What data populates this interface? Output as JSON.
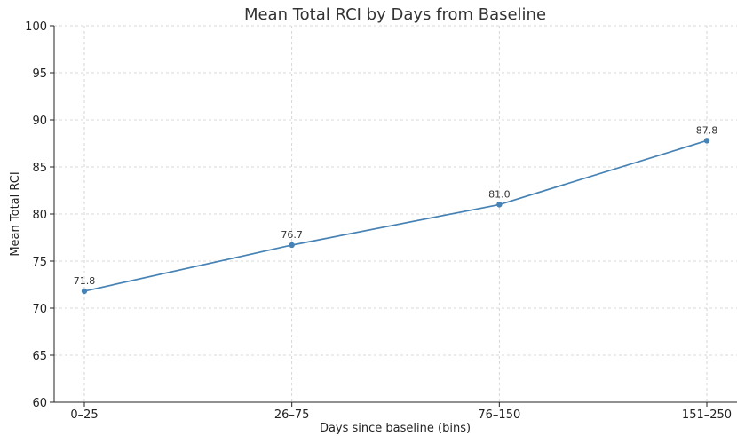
{
  "chart_data": {
    "type": "line",
    "title": "Mean Total RCI by Days from Baseline",
    "xlabel": "Days since baseline (bins)",
    "ylabel": "Mean Total RCI",
    "categories": [
      "0–25",
      "26–75",
      "76–150",
      "151–250"
    ],
    "series": [
      {
        "values": [
          71.8,
          76.7,
          81.0,
          87.8
        ],
        "data_labels": [
          "71.8",
          "76.7",
          "81.0",
          "87.8"
        ],
        "color": "#4682b4"
      }
    ],
    "ylim": [
      60,
      100
    ],
    "yticks": [
      60,
      65,
      70,
      75,
      80,
      85,
      90,
      95,
      100
    ],
    "grid": true
  }
}
